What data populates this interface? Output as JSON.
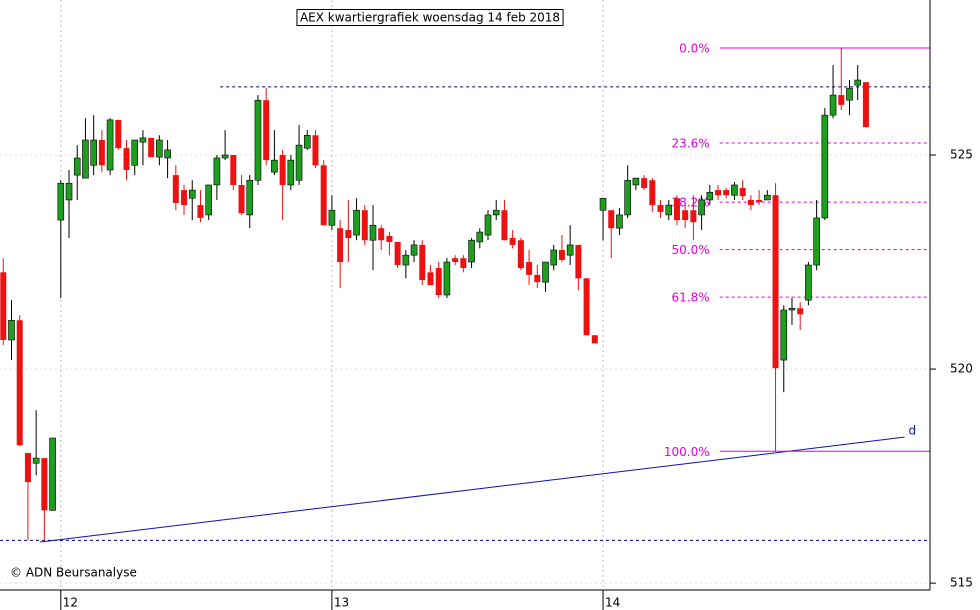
{
  "chart_data": {
    "type": "candlestick",
    "title": "AEX kwartiergrafiek woensdag 14 feb 2018",
    "credit": "© ADN Beursanalyse",
    "categories": [
      null,
      null,
      null,
      null,
      null,
      null,
      null,
      "12",
      null,
      null,
      null,
      null,
      null,
      null,
      null,
      null,
      null,
      null,
      null,
      null,
      null,
      null,
      null,
      null,
      null,
      null,
      null,
      null,
      null,
      null,
      null,
      null,
      null,
      null,
      null,
      null,
      null,
      null,
      null,
      null,
      "13",
      null,
      null,
      null,
      null,
      null,
      null,
      null,
      null,
      null,
      null,
      null,
      null,
      null,
      null,
      null,
      null,
      null,
      null,
      null,
      null,
      null,
      null,
      null,
      null,
      null,
      null,
      null,
      null,
      null,
      null,
      null,
      null,
      "14",
      null,
      null,
      null,
      null,
      null,
      null,
      null,
      null,
      null,
      null,
      null,
      null,
      null,
      null,
      null,
      null,
      null,
      null,
      null,
      null,
      null,
      null,
      null,
      null,
      null,
      null,
      null,
      null,
      null,
      null,
      null,
      null
    ],
    "open": [
      522.26,
      520.68,
      521.14,
      518.04,
      517.8,
      517.92,
      516.7,
      523.48,
      523.95,
      524.53,
      524.46,
      524.76,
      525.35,
      524.65,
      525.82,
      525.16,
      524.76,
      525.3,
      525.4,
      524.95,
      524.93,
      524.53,
      524.18,
      523.99,
      523.83,
      523.6,
      524.3,
      524.93,
      525.0,
      524.3,
      523.6,
      524.41,
      526.28,
      524.6,
      525.0,
      524.3,
      524.41,
      525.16,
      525.46,
      524.76,
      523.36,
      523.29,
      523.25,
      523.13,
      523.71,
      523.01,
      523.29,
      523.11,
      522.97,
      522.43,
      522.66,
      522.9,
      522.26,
      522.36,
      521.73,
      522.59,
      522.59,
      522.5,
      522.97,
      523.13,
      523.6,
      523.71,
      523.06,
      523.01,
      522.5,
      522.2,
      522.03,
      522.43,
      522.78,
      522.66,
      522.9,
      522.12,
      520.79,
      523.71,
      523.71,
      523.29,
      523.6,
      524.3,
      524.46,
      524.41,
      523.83,
      523.6,
      523.99,
      523.71,
      523.71,
      523.6,
      523.95,
      524.18,
      524.18,
      524.06,
      524.23,
      523.95,
      523.95,
      523.95,
      524.06,
      520.21,
      521.38,
      521.42,
      521.61,
      522.43,
      523.53,
      525.93,
      526.4,
      526.28,
      526.63,
      526.7
    ],
    "high": [
      522.59,
      521.61,
      521.26,
      518.04,
      519.04,
      517.92,
      518.39,
      524.41,
      524.65,
      525.23,
      525.86,
      525.93,
      525.58,
      525.86,
      525.82,
      525.35,
      525.35,
      525.58,
      525.4,
      525.46,
      525.35,
      524.76,
      524.3,
      524.41,
      524.18,
      524.3,
      525.0,
      525.58,
      525.0,
      524.53,
      524.53,
      526.4,
      526.56,
      525.58,
      525.12,
      525.0,
      525.7,
      525.58,
      525.58,
      524.88,
      524.06,
      523.48,
      523.95,
      523.99,
      523.83,
      523.83,
      523.36,
      523.2,
      522.97,
      522.78,
      523.01,
      523.01,
      522.43,
      522.5,
      522.59,
      522.66,
      522.66,
      523.06,
      523.29,
      523.71,
      523.95,
      523.95,
      523.25,
      523.06,
      522.78,
      522.43,
      522.5,
      522.9,
      523.13,
      523.36,
      522.9,
      522.12,
      520.79,
      523.99,
      523.71,
      523.76,
      524.76,
      524.46,
      524.53,
      524.46,
      523.95,
      523.95,
      524.06,
      523.83,
      524.06,
      524.06,
      524.3,
      524.3,
      524.23,
      524.37,
      524.41,
      524.06,
      524.18,
      524.18,
      524.34,
      521.49,
      521.66,
      521.56,
      522.5,
      523.95,
      526.1,
      527.1,
      527.5,
      526.75,
      527.1,
      526.7
    ],
    "low": [
      520.56,
      520.21,
      518.2,
      516.0,
      517.52,
      516.0,
      516.7,
      521.66,
      523.06,
      523.95,
      524.46,
      524.53,
      524.6,
      524.53,
      525.12,
      524.41,
      524.53,
      524.76,
      524.95,
      524.76,
      524.46,
      523.71,
      523.6,
      523.48,
      523.43,
      523.48,
      523.95,
      524.88,
      524.18,
      523.6,
      523.29,
      524.3,
      524.76,
      524.53,
      523.48,
      524.18,
      524.3,
      525.12,
      524.69,
      523.36,
      523.25,
      521.89,
      522.5,
      523.01,
      522.9,
      522.31,
      522.78,
      522.66,
      522.36,
      522.12,
      522.5,
      521.96,
      521.96,
      521.66,
      521.66,
      522.43,
      522.26,
      522.36,
      522.82,
      523.01,
      523.48,
      523.01,
      522.82,
      522.31,
      521.96,
      521.89,
      521.8,
      522.31,
      522.5,
      522.43,
      521.84,
      520.79,
      520.6,
      523.01,
      522.59,
      523.13,
      523.53,
      524.18,
      524.18,
      523.67,
      523.53,
      523.48,
      523.36,
      523.29,
      523.01,
      523.25,
      523.83,
      523.95,
      523.99,
      523.95,
      523.95,
      523.71,
      523.83,
      523.95,
      518.08,
      519.46,
      521.03,
      520.91,
      521.49,
      522.31,
      523.48,
      525.86,
      526.05,
      525.93,
      526.28,
      525.65
    ],
    "close": [
      520.68,
      521.14,
      518.22,
      517.36,
      517.92,
      516.7,
      518.39,
      524.34,
      524.34,
      524.93,
      525.35,
      525.35,
      524.76,
      525.82,
      525.16,
      524.65,
      525.35,
      525.4,
      524.95,
      525.35,
      525.12,
      523.88,
      523.83,
      524.18,
      523.53,
      524.3,
      524.93,
      525.0,
      524.3,
      523.64,
      524.41,
      526.28,
      524.88,
      524.88,
      524.3,
      524.88,
      525.23,
      525.46,
      524.76,
      523.36,
      523.71,
      522.5,
      523.06,
      523.71,
      523.01,
      523.36,
      523.01,
      522.97,
      522.43,
      522.66,
      522.9,
      522.08,
      521.96,
      521.73,
      522.5,
      522.5,
      522.36,
      523.01,
      523.2,
      523.6,
      523.71,
      523.01,
      522.9,
      522.36,
      522.2,
      522.03,
      522.5,
      522.78,
      522.55,
      522.9,
      522.12,
      520.79,
      520.6,
      523.99,
      523.29,
      523.6,
      524.41,
      524.46,
      524.23,
      523.83,
      523.67,
      523.83,
      523.48,
      523.48,
      523.43,
      523.95,
      524.13,
      524.06,
      524.06,
      524.3,
      524.04,
      523.83,
      523.9,
      524.06,
      520.02,
      521.38,
      521.42,
      521.28,
      522.43,
      523.53,
      525.93,
      526.4,
      526.17,
      526.56,
      526.75,
      525.65
    ],
    "up_color": "#1e9e1e",
    "down_color": "#ee1111",
    "xlim": [
      -0.4,
      112.8
    ],
    "ylim": [
      514.84,
      528.62
    ],
    "yticks": [
      515,
      520,
      525
    ],
    "fibonacci": {
      "color": "#e000e0",
      "levels": [
        {
          "pct": 0,
          "label": "0.0%",
          "price": 527.5,
          "x_from": 87.2,
          "style": "solid"
        },
        {
          "pct": 23.6,
          "label": "23.6%",
          "price": 525.28,
          "x_from": 87.2,
          "style": "dashed"
        },
        {
          "pct": 38.2,
          "label": "38.2%",
          "price": 523.9,
          "x_from": 87.2,
          "style": "dashed"
        },
        {
          "pct": 50.0,
          "label": "50.0%",
          "price": 522.79,
          "x_from": 87.2,
          "style": "dashed"
        },
        {
          "pct": 61.8,
          "label": "61.8%",
          "price": 521.68,
          "x_from": 87.2,
          "style": "dashed"
        },
        {
          "pct": 100.0,
          "label": "100.0%",
          "price": 518.08,
          "x_from": 87.2,
          "style": "solid"
        }
      ]
    },
    "hlines": {
      "color": "#000099",
      "lines": [
        {
          "value": 526.59,
          "x_from": 26.4
        },
        {
          "value": 516.0,
          "x_from": -0.4
        }
      ]
    },
    "trendline": {
      "label": "d",
      "color": "#1010b0",
      "x": [
        4.5,
        109.7
      ],
      "y": [
        515.96,
        518.41
      ]
    }
  }
}
